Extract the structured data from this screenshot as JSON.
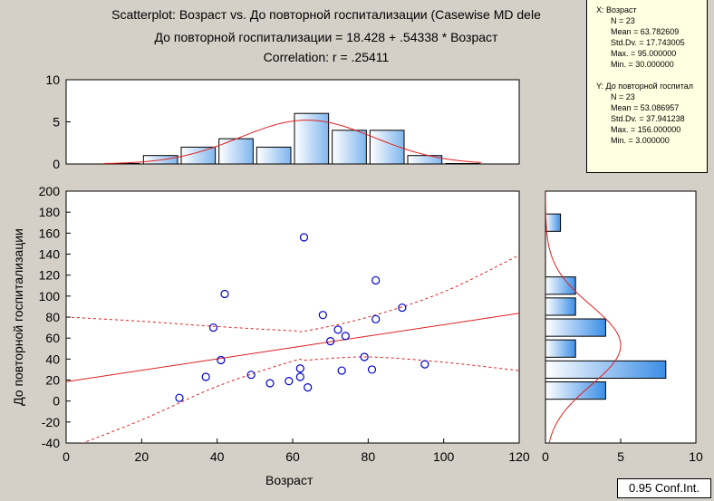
{
  "title": {
    "line1": "Scatterplot: Возраст  vs. До повторной госпитализации (Casewise MD dele",
    "line2": "До повторной госпитализации = 18.428 + .54338 * Возраст",
    "line3": "Correlation: r = .25411"
  },
  "stats": {
    "x": {
      "header": "X:  Возраст",
      "n": "N = 23",
      "mean": "Mean = 63.782609",
      "std": "Std.Dv. = 17.743005",
      "max": "Max. = 95.000000",
      "min": "Min. = 30.000000"
    },
    "y": {
      "header": "Y:  До повторной госпитал",
      "n": "N = 23",
      "mean": "Mean = 53.086957",
      "std": "Std.Dv. = 37.941238",
      "max": "Max. = 156.000000",
      "min": "Min. = 3.000000"
    }
  },
  "conf_label": "0.95 Conf.Int.",
  "colors": {
    "background": "#d4d0c8",
    "plot_bg": "#ffffff",
    "point": "#0000cc",
    "fit_line": "#e02020",
    "bar_light": "#e8f2fc",
    "bar_dark": "#3b8ee6"
  },
  "chart_data": [
    {
      "type": "scatter",
      "xlabel": "Возраст",
      "ylabel": "До повторной госпитализации",
      "xlim": [
        0,
        120
      ],
      "ylim": [
        -40,
        200
      ],
      "xticks": [
        "0",
        "20",
        "40",
        "60",
        "80",
        "100",
        "120"
      ],
      "yticks": [
        "-40",
        "-20",
        "0",
        "20",
        "40",
        "60",
        "80",
        "100",
        "120",
        "140",
        "160",
        "180",
        "200"
      ],
      "points": [
        [
          30,
          3
        ],
        [
          37,
          23
        ],
        [
          39,
          70
        ],
        [
          41,
          39
        ],
        [
          42,
          102
        ],
        [
          49,
          25
        ],
        [
          54,
          17
        ],
        [
          59,
          19
        ],
        [
          62,
          31
        ],
        [
          62,
          23
        ],
        [
          63,
          156
        ],
        [
          64,
          13
        ],
        [
          68,
          82
        ],
        [
          70,
          57
        ],
        [
          72,
          68
        ],
        [
          73,
          29
        ],
        [
          74,
          62
        ],
        [
          79,
          42
        ],
        [
          81,
          30
        ],
        [
          82,
          78
        ],
        [
          82,
          115
        ],
        [
          89,
          89
        ],
        [
          95,
          35
        ]
      ],
      "fit": {
        "intercept": 18.428,
        "slope": 0.54338
      },
      "conf_upper": [
        [
          0,
          80
        ],
        [
          20,
          76
        ],
        [
          40,
          71
        ],
        [
          60,
          67
        ],
        [
          63.8,
          67
        ],
        [
          80,
          80
        ],
        [
          100,
          104
        ],
        [
          120,
          139
        ]
      ],
      "conf_lower": [
        [
          0,
          -46
        ],
        [
          20,
          -18
        ],
        [
          40,
          14
        ],
        [
          60,
          38
        ],
        [
          63.8,
          39
        ],
        [
          80,
          42
        ],
        [
          100,
          37
        ],
        [
          120,
          29
        ]
      ]
    },
    {
      "type": "bar",
      "title": "",
      "ylim": [
        0,
        10
      ],
      "yticks": [
        "0",
        "5",
        "10"
      ],
      "categories": [
        15,
        25,
        35,
        45,
        55,
        65,
        75,
        85,
        95,
        105
      ],
      "values": [
        0,
        1,
        2,
        3,
        2,
        6,
        4,
        4,
        1,
        0
      ]
    },
    {
      "type": "bar",
      "title": "",
      "xlim": [
        0,
        10
      ],
      "xticks": [
        "0",
        "5",
        "10"
      ],
      "categories": [
        -30,
        -10,
        10,
        30,
        50,
        70,
        90,
        110,
        130,
        150,
        170,
        190
      ],
      "values": [
        0,
        0,
        4,
        8,
        2,
        4,
        2,
        2,
        0,
        0,
        1,
        0
      ]
    }
  ]
}
